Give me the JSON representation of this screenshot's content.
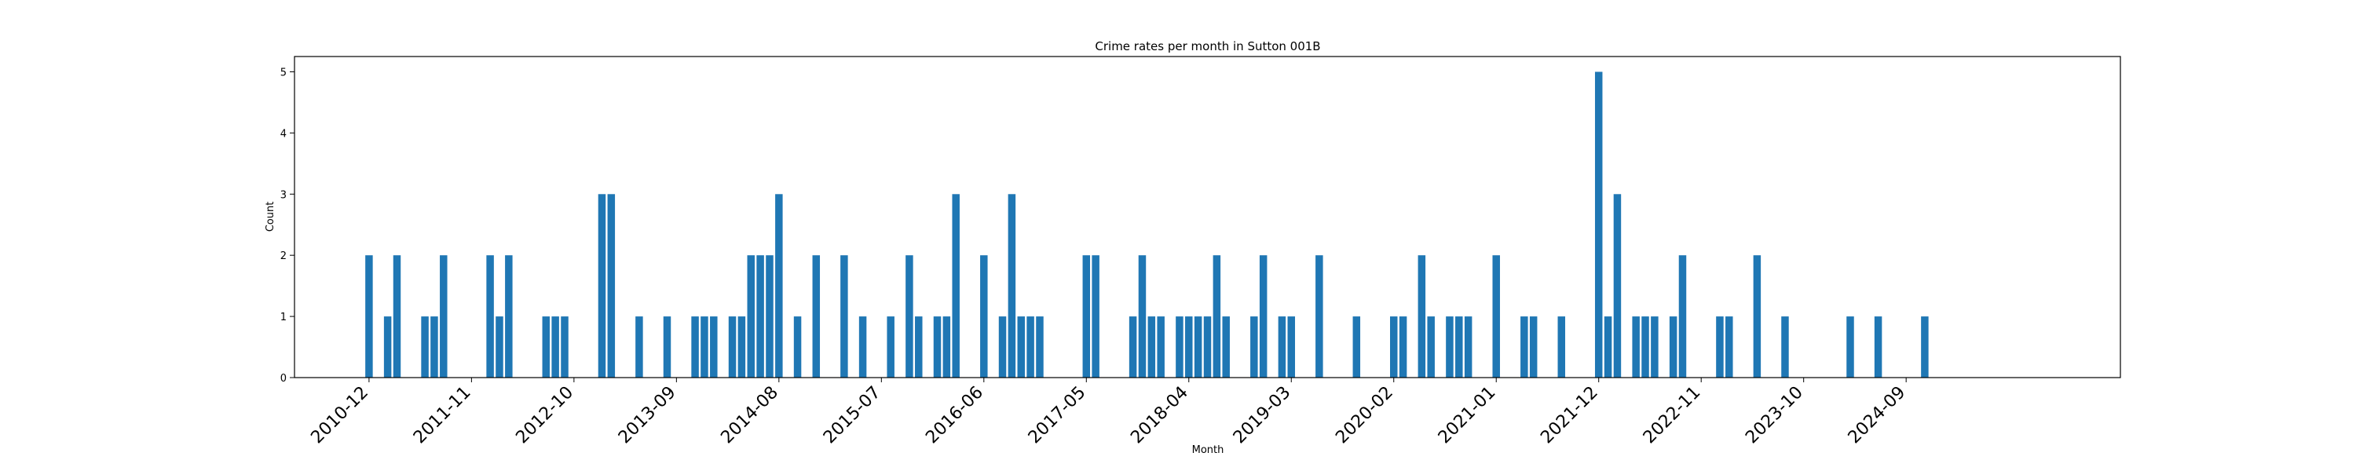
{
  "chart_data": {
    "type": "bar",
    "title": "Crime rates per month in Sutton 001B",
    "xlabel": "Month",
    "ylabel": "Count",
    "ylim": [
      0,
      5.25
    ],
    "yticks": [
      0,
      1,
      2,
      3,
      4,
      5
    ],
    "xlim": [
      "2010-04",
      "2026-08"
    ],
    "xticks": [
      "2010-12",
      "2011-11",
      "2012-10",
      "2013-09",
      "2014-08",
      "2015-07",
      "2016-06",
      "2017-05",
      "2018-04",
      "2019-03",
      "2020-02",
      "2021-01",
      "2021-12",
      "2022-11",
      "2023-10",
      "2024-09"
    ],
    "color": "#1f77b4",
    "grid": false,
    "x": [
      "2010-12",
      "2011-02",
      "2011-03",
      "2011-06",
      "2011-07",
      "2011-08",
      "2012-01",
      "2012-02",
      "2012-03",
      "2012-07",
      "2012-08",
      "2012-09",
      "2013-01",
      "2013-02",
      "2013-05",
      "2013-08",
      "2013-11",
      "2013-12",
      "2014-01",
      "2014-03",
      "2014-04",
      "2014-05",
      "2014-06",
      "2014-07",
      "2014-08",
      "2014-10",
      "2014-12",
      "2015-03",
      "2015-05",
      "2015-08",
      "2015-10",
      "2015-11",
      "2016-01",
      "2016-02",
      "2016-03",
      "2016-06",
      "2016-08",
      "2016-09",
      "2016-10",
      "2016-11",
      "2016-12",
      "2017-05",
      "2017-06",
      "2017-10",
      "2017-11",
      "2017-12",
      "2018-01",
      "2018-03",
      "2018-04",
      "2018-05",
      "2018-06",
      "2018-07",
      "2018-08",
      "2018-11",
      "2018-12",
      "2019-02",
      "2019-03",
      "2019-06",
      "2019-10",
      "2020-02",
      "2020-03",
      "2020-05",
      "2020-06",
      "2020-08",
      "2020-09",
      "2020-10",
      "2021-01",
      "2021-04",
      "2021-05",
      "2021-08",
      "2021-12",
      "2022-01",
      "2022-02",
      "2022-04",
      "2022-05",
      "2022-06",
      "2022-08",
      "2022-09",
      "2023-01",
      "2023-02",
      "2023-05",
      "2023-08",
      "2024-03",
      "2024-06",
      "2024-11"
    ],
    "values": [
      2,
      1,
      2,
      1,
      1,
      2,
      2,
      1,
      2,
      1,
      1,
      1,
      3,
      3,
      1,
      1,
      1,
      1,
      1,
      1,
      1,
      2,
      2,
      2,
      3,
      1,
      2,
      2,
      1,
      1,
      2,
      1,
      1,
      1,
      3,
      2,
      1,
      3,
      1,
      1,
      1,
      2,
      2,
      1,
      2,
      1,
      1,
      1,
      1,
      1,
      1,
      2,
      1,
      1,
      2,
      1,
      1,
      2,
      1,
      1,
      1,
      2,
      1,
      1,
      1,
      1,
      2,
      1,
      1,
      1,
      5,
      1,
      3,
      1,
      1,
      1,
      1,
      2,
      1,
      1,
      2,
      1,
      1,
      1,
      1
    ]
  }
}
